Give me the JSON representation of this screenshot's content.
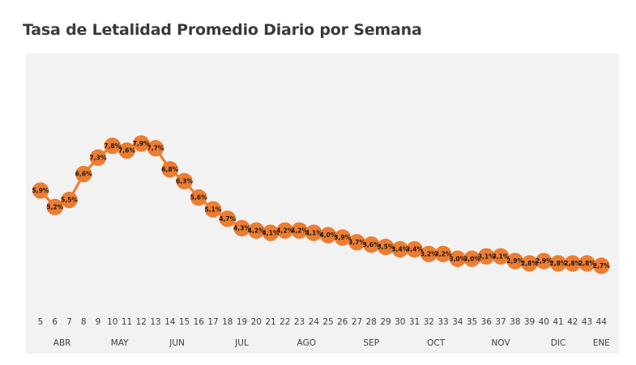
{
  "title": "Tasa de Letalidad Promedio Diario por Semana",
  "chart_data": {
    "type": "line",
    "title": "Tasa de Letalidad Promedio Diario por Semana",
    "xlabel": "",
    "ylabel": "",
    "x": [
      "5",
      "6",
      "7",
      "8",
      "9",
      "10",
      "11",
      "12",
      "13",
      "14",
      "15",
      "16",
      "17",
      "18",
      "19",
      "20",
      "21",
      "22",
      "23",
      "24",
      "25",
      "26",
      "27",
      "28",
      "29",
      "30",
      "31",
      "32",
      "33",
      "34",
      "35",
      "36",
      "37",
      "38",
      "39",
      "40",
      "41",
      "42",
      "43",
      "44"
    ],
    "values": [
      5.9,
      5.2,
      5.5,
      6.6,
      7.3,
      7.8,
      7.6,
      7.9,
      7.7,
      6.8,
      6.3,
      5.6,
      5.1,
      4.7,
      4.3,
      4.2,
      4.1,
      4.2,
      4.2,
      4.1,
      4.0,
      3.9,
      3.7,
      3.6,
      3.5,
      3.4,
      3.4,
      3.2,
      3.2,
      3.0,
      3.0,
      3.1,
      3.1,
      2.9,
      2.8,
      2.9,
      2.8,
      2.8,
      2.8,
      2.7
    ],
    "labels": [
      "5,9%",
      "5,2%",
      "5,5%",
      "6,6%",
      "7,3%",
      "7,8%",
      "7,6%",
      "7,9%",
      "7,7%",
      "6,8%",
      "6,3%",
      "5,6%",
      "5,1%",
      "4,7%",
      "4,3%",
      "4,2%",
      "4,1%",
      "4,2%",
      "4,2%",
      "4,1%",
      "4,0%",
      "3,9%",
      "3,7%",
      "3,6%",
      "3,5%",
      "3,4%",
      "3,4%",
      "3,2%",
      "3,2%",
      "3,0%",
      "3,0%",
      "3,1%",
      "3,1%",
      "2,9%",
      "2,8%",
      "2,9%",
      "2,8%",
      "2,8%",
      "2,8%",
      "2,7%"
    ],
    "months": [
      {
        "label": "ABR",
        "at": 6.5
      },
      {
        "label": "MAY",
        "at": 10.5
      },
      {
        "label": "JUN",
        "at": 14.5
      },
      {
        "label": "JUL",
        "at": 19
      },
      {
        "label": "AGO",
        "at": 23.5
      },
      {
        "label": "SEP",
        "at": 28
      },
      {
        "label": "OCT",
        "at": 32.5
      },
      {
        "label": "NOV",
        "at": 37
      },
      {
        "label": "DIC",
        "at": 41
      },
      {
        "label": "ENE",
        "at": 44
      }
    ],
    "ylim": [
      0,
      10
    ],
    "grid": false,
    "legend": "none",
    "colors": {
      "line": "#ED7D31",
      "marker": "#ED7D31",
      "label": "#1a1a1a",
      "plot_bg": "#F2F2F2"
    }
  }
}
